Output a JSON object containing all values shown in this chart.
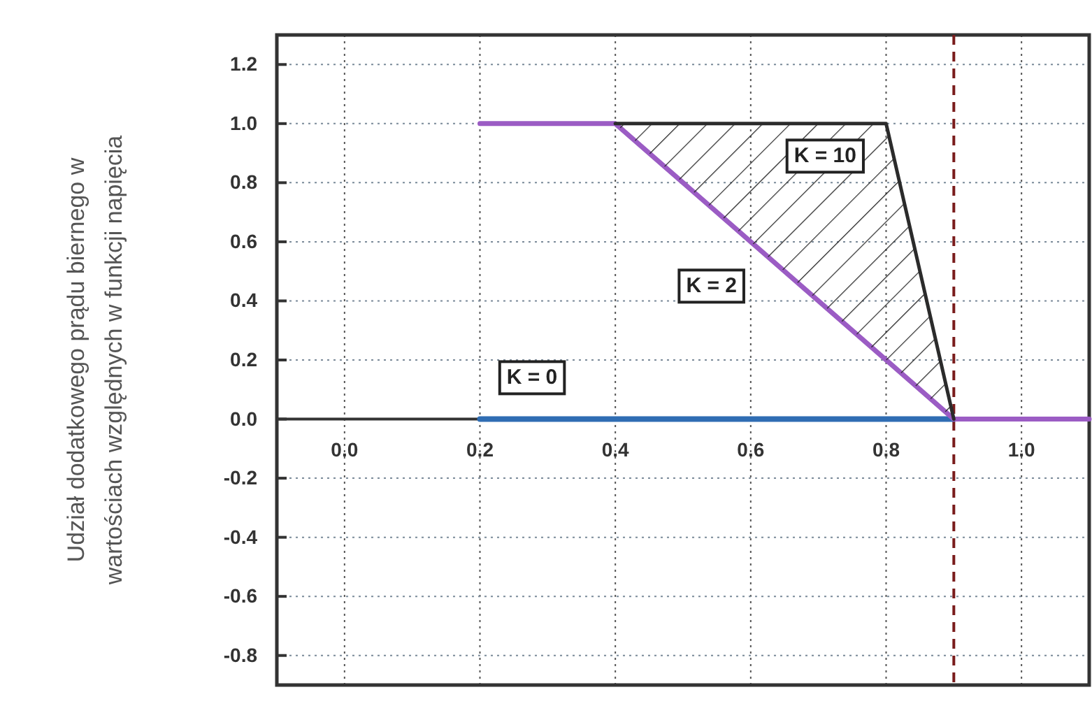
{
  "chart_data": {
    "type": "line",
    "ylabel": "Udział dodatkowego prądu biernego w wartościach względnych w funkcji napięcia",
    "xlim": [
      -0.1,
      1.1
    ],
    "ylim": [
      -0.9,
      1.3
    ],
    "xticks": [
      {
        "value": 0,
        "label": "0.0"
      },
      {
        "value": 0.2,
        "label": "0.2"
      },
      {
        "value": 0.4,
        "label": "0.4"
      },
      {
        "value": 0.6,
        "label": "0.6"
      },
      {
        "value": 0.8,
        "label": "0.8"
      },
      {
        "value": 1,
        "label": "1.0"
      }
    ],
    "yticks": [
      {
        "value": -0.8,
        "label": "-0.8"
      },
      {
        "value": -0.6,
        "label": "-0.6"
      },
      {
        "value": -0.4,
        "label": "-0.4"
      },
      {
        "value": -0.2,
        "label": "-0.2"
      },
      {
        "value": 0,
        "label": "0.0"
      },
      {
        "value": 0.2,
        "label": "0.2"
      },
      {
        "value": 0.4,
        "label": "0.4"
      },
      {
        "value": 0.6,
        "label": "0.6"
      },
      {
        "value": 0.8,
        "label": "0.8"
      },
      {
        "value": 1,
        "label": "1.0"
      },
      {
        "value": 1.2,
        "label": "1.2"
      }
    ],
    "grid": true,
    "line_style": "solid",
    "series": [
      {
        "name": "K = 0",
        "color": "#2f6db3",
        "x": [
          0.2,
          0.9
        ],
        "values": [
          0,
          0
        ]
      },
      {
        "name": "K = 2",
        "color": "#9b5cc4",
        "x": [
          0.2,
          0.4,
          0.9,
          1.1
        ],
        "values": [
          1,
          1,
          0,
          0
        ]
      },
      {
        "name": "K = 10",
        "color": "#2b2b2b",
        "x": [
          0.4,
          0.8,
          0.9
        ],
        "values": [
          1,
          1,
          0
        ],
        "lower": [
          1,
          0.2,
          0
        ],
        "upper": [
          1,
          1,
          0
        ]
      }
    ],
    "ref_lines": [
      {
        "axis": "x",
        "value": 0.9,
        "color": "#7a1c1c",
        "line_style": "dashed"
      }
    ]
  }
}
